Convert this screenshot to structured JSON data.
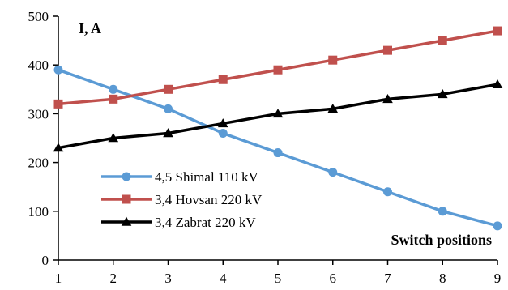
{
  "chart_data": {
    "type": "line",
    "ylabel": "I, A",
    "xlabel": "Switch positions",
    "x": [
      1,
      2,
      3,
      4,
      5,
      6,
      7,
      8,
      9
    ],
    "xlim": [
      1,
      9
    ],
    "ylim": [
      0,
      500
    ],
    "yticks": [
      0,
      100,
      200,
      300,
      400,
      500
    ],
    "grid": false,
    "legend_position": "lower-left",
    "series": [
      {
        "name": "4,5 Shimal 110 kV",
        "values": [
          390,
          350,
          310,
          260,
          220,
          180,
          140,
          100,
          70
        ],
        "color": "#5B9BD5",
        "marker": "circle"
      },
      {
        "name": "3,4 Hovsan 220 kV",
        "values": [
          320,
          330,
          350,
          370,
          390,
          410,
          430,
          450,
          470
        ],
        "color": "#C0504D",
        "marker": "square"
      },
      {
        "name": "3,4 Zabrat 220 kV",
        "values": [
          230,
          250,
          260,
          280,
          300,
          310,
          330,
          340,
          360
        ],
        "color": "#000000",
        "marker": "triangle"
      }
    ]
  }
}
